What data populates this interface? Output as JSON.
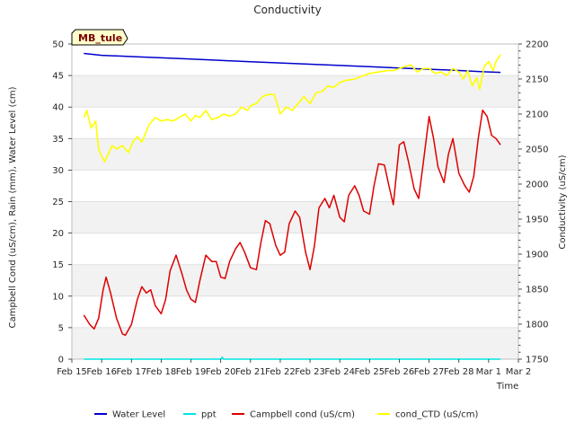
{
  "chart_data": {
    "type": "line",
    "title": "Conductivity",
    "site_label": "MB_tule",
    "xlabel": "Time",
    "ylabel_left": "Campbell Cond (uS/cm), Rain (mm), Water Level (cm)",
    "ylabel_right": "Conductivity (uS/cm)",
    "x_range": [
      0,
      15
    ],
    "ylim_left": [
      0,
      50
    ],
    "ylim_right": [
      1750,
      2200
    ],
    "x_ticks": [
      {
        "pos": 0,
        "label": "Feb 15"
      },
      {
        "pos": 1,
        "label": "Feb 16"
      },
      {
        "pos": 2,
        "label": "Feb 17"
      },
      {
        "pos": 3,
        "label": "Feb 18"
      },
      {
        "pos": 4,
        "label": "Feb 19"
      },
      {
        "pos": 5,
        "label": "Feb 20"
      },
      {
        "pos": 6,
        "label": "Feb 21"
      },
      {
        "pos": 7,
        "label": "Feb 22"
      },
      {
        "pos": 8,
        "label": "Feb 23"
      },
      {
        "pos": 9,
        "label": "Feb 24"
      },
      {
        "pos": 10,
        "label": "Feb 25"
      },
      {
        "pos": 11,
        "label": "Feb 26"
      },
      {
        "pos": 12,
        "label": "Feb 27"
      },
      {
        "pos": 13,
        "label": "Feb 28"
      },
      {
        "pos": 14,
        "label": "Mar 1"
      },
      {
        "pos": 15,
        "label": "Mar 2"
      }
    ],
    "y_ticks_left": [
      0,
      5,
      10,
      15,
      20,
      25,
      30,
      35,
      40,
      45,
      50
    ],
    "y_ticks_right": [
      1750,
      1800,
      1850,
      1900,
      1950,
      2000,
      2050,
      2100,
      2150,
      2200
    ],
    "grid": "horizontal-bands",
    "legend_position": "bottom",
    "series": [
      {
        "name": "Water Level",
        "axis": "left",
        "color": "#0000cc",
        "x": [
          0.4,
          1,
          2,
          3,
          4,
          5,
          6,
          7,
          8,
          9,
          10,
          11,
          12,
          13,
          13.8,
          14.4
        ],
        "y": [
          48.5,
          48.2,
          48.0,
          47.8,
          47.6,
          47.4,
          47.2,
          47.0,
          46.8,
          46.6,
          46.4,
          46.2,
          46.0,
          45.8,
          45.6,
          45.5
        ]
      },
      {
        "name": "ppt",
        "axis": "left",
        "color": "#00e5e5",
        "x": [
          0.4,
          5.0,
          5.05,
          5.1,
          14.4
        ],
        "y": [
          0,
          0,
          0.3,
          0,
          0
        ]
      },
      {
        "name": "Campbell cond (uS/cm)",
        "axis": "left",
        "color": "#dd0000",
        "x": [
          0.4,
          0.6,
          0.75,
          0.9,
          1.05,
          1.15,
          1.3,
          1.5,
          1.7,
          1.8,
          2.0,
          2.2,
          2.35,
          2.5,
          2.65,
          2.8,
          3.0,
          3.15,
          3.3,
          3.5,
          3.7,
          3.85,
          4.0,
          4.15,
          4.3,
          4.5,
          4.7,
          4.85,
          5.0,
          5.15,
          5.3,
          5.5,
          5.65,
          5.8,
          6.0,
          6.2,
          6.35,
          6.5,
          6.65,
          6.85,
          7.0,
          7.15,
          7.3,
          7.5,
          7.65,
          7.85,
          8.0,
          8.15,
          8.3,
          8.5,
          8.65,
          8.8,
          9.0,
          9.15,
          9.3,
          9.5,
          9.65,
          9.8,
          10.0,
          10.15,
          10.3,
          10.5,
          10.65,
          10.8,
          11.0,
          11.15,
          11.3,
          11.5,
          11.65,
          11.8,
          12.0,
          12.15,
          12.3,
          12.5,
          12.65,
          12.8,
          13.0,
          13.2,
          13.35,
          13.5,
          13.65,
          13.8,
          13.95,
          14.1,
          14.25,
          14.4
        ],
        "y": [
          7.0,
          5.5,
          4.8,
          6.5,
          11.0,
          13.0,
          10.5,
          6.5,
          4.0,
          3.8,
          5.5,
          9.5,
          11.5,
          10.5,
          11.0,
          8.5,
          7.2,
          9.5,
          14.0,
          16.5,
          13.5,
          11.0,
          9.5,
          9.0,
          12.5,
          16.5,
          15.5,
          15.5,
          13.0,
          12.8,
          15.5,
          17.5,
          18.5,
          17.0,
          14.5,
          14.2,
          18.5,
          22.0,
          21.5,
          18.0,
          16.5,
          17.0,
          21.5,
          23.5,
          22.5,
          17.0,
          14.2,
          18.0,
          24.0,
          25.5,
          24.0,
          26.0,
          22.5,
          21.8,
          26.0,
          27.5,
          26.0,
          23.5,
          23.0,
          27.5,
          31.0,
          30.8,
          27.5,
          24.5,
          34.0,
          34.5,
          31.5,
          27.0,
          25.5,
          31.0,
          38.5,
          35.0,
          30.5,
          28.0,
          32.5,
          35.0,
          29.5,
          27.5,
          26.5,
          29.0,
          35.0,
          39.5,
          38.5,
          35.5,
          35.0,
          34.0
        ]
      },
      {
        "name": "cond_CTD (uS/cm)",
        "axis": "right",
        "color": "#ffff00",
        "x": [
          0.4,
          0.5,
          0.65,
          0.8,
          0.9,
          1.0,
          1.1,
          1.25,
          1.35,
          1.5,
          1.7,
          1.9,
          2.05,
          2.2,
          2.35,
          2.6,
          2.8,
          3.0,
          3.2,
          3.4,
          3.6,
          3.8,
          4.0,
          4.15,
          4.3,
          4.5,
          4.7,
          4.9,
          5.1,
          5.3,
          5.5,
          5.7,
          5.9,
          6.0,
          6.2,
          6.4,
          6.6,
          6.8,
          7.0,
          7.2,
          7.4,
          7.6,
          7.8,
          8.0,
          8.2,
          8.4,
          8.6,
          8.8,
          9.0,
          9.2,
          9.5,
          9.8,
          10.0,
          10.3,
          10.6,
          10.8,
          11.0,
          11.2,
          11.4,
          11.6,
          11.8,
          12.0,
          12.2,
          12.4,
          12.6,
          12.8,
          13.0,
          13.15,
          13.3,
          13.45,
          13.6,
          13.7,
          13.85,
          14.0,
          14.15,
          14.25,
          14.4
        ],
        "y": [
          2095,
          2105,
          2080,
          2090,
          2050,
          2040,
          2032,
          2045,
          2055,
          2050,
          2055,
          2045,
          2060,
          2068,
          2060,
          2085,
          2095,
          2090,
          2092,
          2090,
          2095,
          2100,
          2090,
          2098,
          2095,
          2105,
          2092,
          2095,
          2100,
          2097,
          2100,
          2110,
          2105,
          2112,
          2115,
          2125,
          2128,
          2128,
          2100,
          2110,
          2105,
          2115,
          2125,
          2115,
          2130,
          2132,
          2140,
          2138,
          2145,
          2148,
          2150,
          2155,
          2158,
          2160,
          2162,
          2162,
          2165,
          2168,
          2170,
          2160,
          2165,
          2165,
          2158,
          2160,
          2155,
          2165,
          2160,
          2150,
          2162,
          2140,
          2152,
          2135,
          2168,
          2175,
          2162,
          2175,
          2185
        ]
      }
    ]
  }
}
